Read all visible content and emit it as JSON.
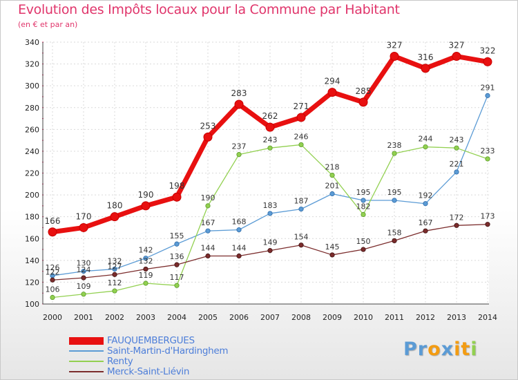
{
  "header": {
    "title": "Evolution des Impôts locaux pour la Commune par Habitant",
    "subtitle": "(en € et par an)"
  },
  "chart_data": {
    "type": "line",
    "title": "Evolution des Impôts locaux pour la Commune par Habitant",
    "subtitle": "(en € et par an)",
    "xlabel": "",
    "ylabel": "",
    "x": [
      "2000",
      "2001",
      "2002",
      "2003",
      "2004",
      "2005",
      "2006",
      "2007",
      "2008",
      "2009",
      "2010",
      "2011",
      "2012",
      "2013",
      "2014"
    ],
    "ylim": [
      100,
      340
    ],
    "yticks": [
      100,
      120,
      140,
      160,
      180,
      200,
      220,
      240,
      260,
      280,
      300,
      320,
      340
    ],
    "grid": true,
    "legend_position": "bottom-left",
    "series": [
      {
        "name": "FAUQUEMBERGUES",
        "color": "#e81010",
        "values": [
          166,
          170,
          180,
          190,
          198,
          253,
          283,
          262,
          271,
          294,
          285,
          327,
          316,
          327,
          322
        ]
      },
      {
        "name": "Saint-Martin-d'Hardinghem",
        "color": "#5b9bd5",
        "values": [
          126,
          130,
          132,
          142,
          155,
          167,
          168,
          183,
          187,
          201,
          195,
          195,
          192,
          221,
          291
        ]
      },
      {
        "name": "Renty",
        "color": "#92d050",
        "values": [
          106,
          109,
          112,
          119,
          117,
          190,
          237,
          243,
          246,
          218,
          182,
          238,
          244,
          243,
          233
        ]
      },
      {
        "name": "Merck-Saint-Liévin",
        "color": "#7b2c2c",
        "values": [
          122,
          124,
          127,
          132,
          136,
          144,
          144,
          149,
          154,
          145,
          150,
          158,
          167,
          172,
          173
        ]
      }
    ]
  },
  "logo": {
    "letters": [
      "P",
      "r",
      "o",
      "x",
      "i",
      "t",
      "i"
    ],
    "colors": [
      "#5b9bd5",
      "#5b9bd5",
      "#f39c12",
      "#5b9bd5",
      "#f39c12",
      "#f39c12",
      "#92d050"
    ]
  }
}
